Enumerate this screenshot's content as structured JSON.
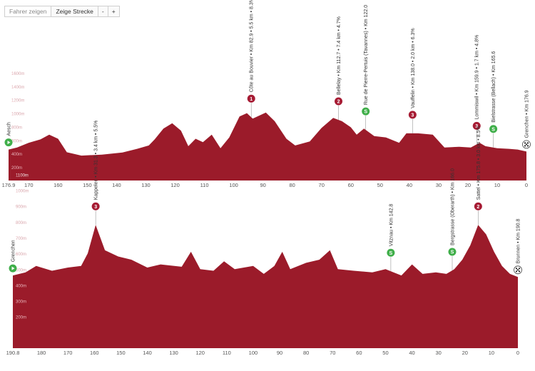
{
  "toolbar": {
    "show_riders_label": "Fahrer zeigen",
    "show_route_label": "Zeige Strecke",
    "zoom_out_label": "-",
    "zoom_in_label": "+"
  },
  "colors": {
    "profile_fill": "#9b1b2a",
    "mountain_marker": "#a61b33",
    "sprint_marker": "#3fae49",
    "start_marker": "#3fae49",
    "axis_text": "#555555",
    "altitude_label": "#cccccc"
  },
  "chart_data": [
    {
      "type": "area",
      "title": "",
      "xlabel": "",
      "ylabel": "",
      "xlim": [
        176.9,
        0
      ],
      "ylim": [
        0,
        2000
      ],
      "x_reversed": true,
      "x_tick_labels": [
        "176.9",
        "170",
        "160",
        "150",
        "140",
        "130",
        "120",
        "110",
        "100",
        "90",
        "80",
        "70",
        "60",
        "50",
        "40",
        "30",
        "20",
        "10",
        "0"
      ],
      "y_tick_labels": [
        "200m",
        "400m",
        "600m",
        "800m",
        "1000m",
        "1200m",
        "1400m",
        "1600m"
      ],
      "y_ticks": [
        200,
        400,
        600,
        800,
        1000,
        1200,
        1400,
        1600
      ],
      "series": [
        {
          "values": [
            {
              "x": 176.9,
              "y": 460
            },
            {
              "x": 174,
              "y": 490
            },
            {
              "x": 170,
              "y": 560
            },
            {
              "x": 166,
              "y": 610
            },
            {
              "x": 163,
              "y": 680
            },
            {
              "x": 160,
              "y": 620
            },
            {
              "x": 157,
              "y": 420
            },
            {
              "x": 152,
              "y": 370
            },
            {
              "x": 145,
              "y": 385
            },
            {
              "x": 138,
              "y": 415
            },
            {
              "x": 133,
              "y": 470
            },
            {
              "x": 129,
              "y": 520
            },
            {
              "x": 127,
              "y": 610
            },
            {
              "x": 124,
              "y": 770
            },
            {
              "x": 121,
              "y": 850
            },
            {
              "x": 118,
              "y": 740
            },
            {
              "x": 115.5,
              "y": 510
            },
            {
              "x": 113,
              "y": 620
            },
            {
              "x": 110.5,
              "y": 570
            },
            {
              "x": 107.5,
              "y": 680
            },
            {
              "x": 104.5,
              "y": 480
            },
            {
              "x": 101.5,
              "y": 640
            },
            {
              "x": 98,
              "y": 950
            },
            {
              "x": 95.5,
              "y": 1000
            },
            {
              "x": 93.5,
              "y": 920
            },
            {
              "x": 89,
              "y": 1010
            },
            {
              "x": 86,
              "y": 880
            },
            {
              "x": 82,
              "y": 620
            },
            {
              "x": 79,
              "y": 520
            },
            {
              "x": 74,
              "y": 580
            },
            {
              "x": 70,
              "y": 780
            },
            {
              "x": 66,
              "y": 930
            },
            {
              "x": 63,
              "y": 880
            },
            {
              "x": 60,
              "y": 790
            },
            {
              "x": 58,
              "y": 680
            },
            {
              "x": 55.5,
              "y": 770
            },
            {
              "x": 52,
              "y": 660
            },
            {
              "x": 48,
              "y": 640
            },
            {
              "x": 43.5,
              "y": 560
            },
            {
              "x": 41,
              "y": 700
            },
            {
              "x": 37,
              "y": 700
            },
            {
              "x": 32,
              "y": 680
            },
            {
              "x": 28,
              "y": 490
            },
            {
              "x": 23,
              "y": 500
            },
            {
              "x": 19,
              "y": 490
            },
            {
              "x": 16,
              "y": 560
            },
            {
              "x": 14,
              "y": 510
            },
            {
              "x": 10,
              "y": 480
            },
            {
              "x": 6,
              "y": 470
            },
            {
              "x": 3,
              "y": 460
            },
            {
              "x": 0,
              "y": 430
            }
          ]
        }
      ],
      "markers": [
        {
          "km": 176.9,
          "kind": "start",
          "label": "Aesch"
        },
        {
          "km": 94,
          "kind": "climb",
          "category": "1",
          "label": "Côte au Bouvier • Km 82.9 • 5.5 km • 8.3%"
        },
        {
          "km": 64.2,
          "kind": "climb",
          "category": "2",
          "label": "Bellelay • Km 112.7 • 7.4 km • 4.7%"
        },
        {
          "km": 54.9,
          "kind": "sprint",
          "category": "S",
          "label": "Rue de Pierre-Pertuis (Tavannes) • Km 122.0"
        },
        {
          "km": 38.9,
          "kind": "climb",
          "category": "3",
          "label": "Vauffelin • Km 138.0 • 2.0 km • 6.3%"
        },
        {
          "km": 17,
          "kind": "climb",
          "category": "3",
          "label": "Lommiswil • Km 159.9 • 1.7 km • 4.8%"
        },
        {
          "km": 11.3,
          "kind": "sprint",
          "category": "S",
          "label": "Bielstrasse (Bellach) • Km 165.6"
        },
        {
          "km": 0,
          "kind": "finish",
          "label": "Grenchen • Km 176.9"
        }
      ]
    },
    {
      "type": "area",
      "title": "",
      "xlabel": "",
      "ylabel": "",
      "xlim": [
        190.8,
        0
      ],
      "ylim": [
        0,
        1200
      ],
      "x_reversed": true,
      "x_tick_labels": [
        "190.8",
        "180",
        "170",
        "160",
        "150",
        "140",
        "130",
        "120",
        "110",
        "100",
        "90",
        "80",
        "70",
        "60",
        "50",
        "40",
        "30",
        "20",
        "10",
        "0"
      ],
      "y_tick_labels": [
        "200m",
        "300m",
        "400m",
        "500m",
        "600m",
        "700m",
        "800m",
        "900m",
        "1000m",
        "1100m"
      ],
      "y_ticks": [
        200,
        300,
        400,
        500,
        600,
        700,
        800,
        900,
        1000,
        1100
      ],
      "series": [
        {
          "values": [
            {
              "x": 190.8,
              "y": 460
            },
            {
              "x": 186,
              "y": 480
            },
            {
              "x": 182,
              "y": 520
            },
            {
              "x": 176,
              "y": 490
            },
            {
              "x": 170,
              "y": 510
            },
            {
              "x": 165,
              "y": 520
            },
            {
              "x": 162.5,
              "y": 600
            },
            {
              "x": 159.5,
              "y": 780
            },
            {
              "x": 156,
              "y": 620
            },
            {
              "x": 151,
              "y": 580
            },
            {
              "x": 146,
              "y": 560
            },
            {
              "x": 140,
              "y": 510
            },
            {
              "x": 135,
              "y": 530
            },
            {
              "x": 127,
              "y": 515
            },
            {
              "x": 123.5,
              "y": 610
            },
            {
              "x": 120,
              "y": 500
            },
            {
              "x": 115,
              "y": 490
            },
            {
              "x": 111,
              "y": 550
            },
            {
              "x": 107,
              "y": 500
            },
            {
              "x": 100,
              "y": 520
            },
            {
              "x": 96,
              "y": 470
            },
            {
              "x": 92,
              "y": 520
            },
            {
              "x": 89,
              "y": 610
            },
            {
              "x": 86,
              "y": 500
            },
            {
              "x": 80,
              "y": 540
            },
            {
              "x": 75,
              "y": 560
            },
            {
              "x": 71,
              "y": 620
            },
            {
              "x": 68,
              "y": 500
            },
            {
              "x": 62,
              "y": 490
            },
            {
              "x": 55,
              "y": 480
            },
            {
              "x": 50,
              "y": 500
            },
            {
              "x": 44,
              "y": 460
            },
            {
              "x": 40,
              "y": 530
            },
            {
              "x": 36,
              "y": 470
            },
            {
              "x": 31,
              "y": 480
            },
            {
              "x": 27,
              "y": 470
            },
            {
              "x": 24,
              "y": 500
            },
            {
              "x": 21,
              "y": 560
            },
            {
              "x": 18,
              "y": 650
            },
            {
              "x": 15,
              "y": 780
            },
            {
              "x": 12,
              "y": 720
            },
            {
              "x": 9,
              "y": 610
            },
            {
              "x": 6,
              "y": 520
            },
            {
              "x": 3,
              "y": 470
            },
            {
              "x": 0,
              "y": 450
            }
          ]
        }
      ],
      "markers": [
        {
          "km": 190.8,
          "kind": "start",
          "label": "Grenchen"
        },
        {
          "km": 159.5,
          "kind": "climb",
          "category": "3",
          "label": "Kappelen • Km 31.3 • 3.4 km • 5.5%"
        },
        {
          "km": 48,
          "kind": "sprint",
          "category": "S",
          "label": "Vitznau • Km 142.8"
        },
        {
          "km": 24.8,
          "kind": "sprint",
          "category": "S",
          "label": "Bergstrasse (Oberarth) • Km 166.0"
        },
        {
          "km": 15,
          "kind": "climb",
          "category": "2",
          "label": "Sattel • Km 175.8 • 3.0 km • 8.5%"
        },
        {
          "km": 0,
          "kind": "finish",
          "label": "Brunnen • Km 190.8"
        }
      ]
    }
  ]
}
